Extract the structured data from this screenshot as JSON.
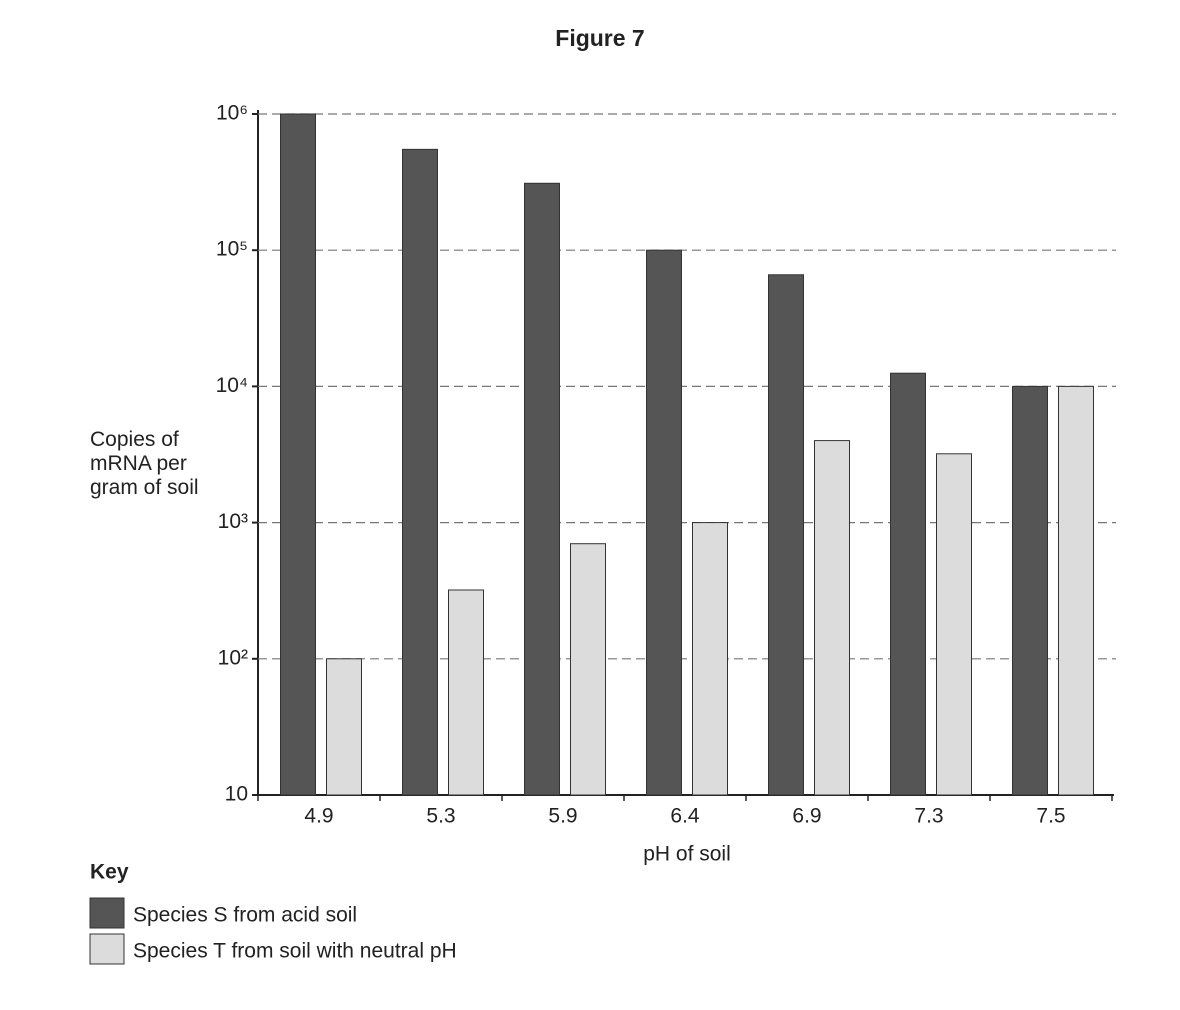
{
  "chart_data": {
    "type": "bar",
    "title": "Figure 7",
    "x_label": "pH of soil",
    "y_label": "Copies of mRNA per gram of soil",
    "categories": [
      "4.9",
      "5.3",
      "5.9",
      "6.4",
      "6.9",
      "7.3",
      "7.5"
    ],
    "series": [
      {
        "name": "Species S from acid soil",
        "color": "#555555",
        "values": [
          1000000,
          550000,
          310000,
          100000,
          66000,
          12500,
          10000
        ]
      },
      {
        "name": "Species T from soil with neutral pH",
        "color": "#dcdcdc",
        "values": [
          100,
          320,
          700,
          1000,
          4000,
          3200,
          10000
        ]
      }
    ],
    "y_log": true,
    "ylim": [
      10,
      1000000
    ],
    "yticks": [
      10,
      {
        "value": 100,
        "label": "10²"
      },
      {
        "value": 1000,
        "label": "10³"
      },
      {
        "value": 10000,
        "label": "10⁴"
      },
      {
        "value": 100000,
        "label": "10⁵"
      },
      {
        "value": 1000000,
        "label": "10⁶"
      }
    ],
    "grid": true,
    "legend_title": "Key",
    "legend_position": "bottom-left"
  }
}
